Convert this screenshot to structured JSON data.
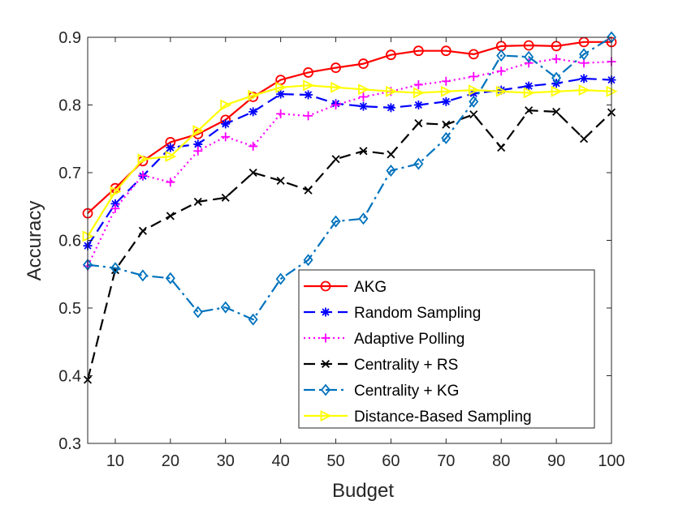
{
  "chart_data": {
    "type": "line",
    "title": "",
    "xlabel": "Budget",
    "ylabel": "Accuracy",
    "xlim": [
      5,
      100
    ],
    "ylim": [
      0.3,
      0.9
    ],
    "xticks": [
      10,
      20,
      30,
      40,
      50,
      60,
      70,
      80,
      90,
      100
    ],
    "yticks": [
      0.3,
      0.4,
      0.5,
      0.6,
      0.7,
      0.8,
      0.9
    ],
    "grid": false,
    "legend_position": "bottom-right",
    "x": [
      5,
      10,
      15,
      20,
      25,
      30,
      35,
      40,
      45,
      50,
      55,
      60,
      65,
      70,
      75,
      80,
      85,
      90,
      95,
      100
    ],
    "series": [
      {
        "name": "AKG",
        "color": "#ff0000",
        "dash": "solid",
        "marker": "circle",
        "values": [
          0.64,
          0.677,
          0.717,
          0.745,
          0.757,
          0.778,
          0.812,
          0.837,
          0.848,
          0.855,
          0.861,
          0.874,
          0.88,
          0.88,
          0.875,
          0.887,
          0.888,
          0.887,
          0.893,
          0.893
        ]
      },
      {
        "name": "Random Sampling",
        "color": "#0000ff",
        "dash": "dashed",
        "marker": "asterisk",
        "values": [
          0.592,
          0.654,
          0.695,
          0.737,
          0.742,
          0.772,
          0.79,
          0.816,
          0.815,
          0.802,
          0.798,
          0.796,
          0.8,
          0.805,
          0.817,
          0.822,
          0.828,
          0.832,
          0.839,
          0.837
        ]
      },
      {
        "name": "Adaptive Polling",
        "color": "#ff00ff",
        "dash": "dotted",
        "marker": "plus",
        "values": [
          0.562,
          0.647,
          0.696,
          0.686,
          0.732,
          0.753,
          0.739,
          0.787,
          0.784,
          0.8,
          0.812,
          0.82,
          0.83,
          0.835,
          0.842,
          0.85,
          0.862,
          0.868,
          0.862,
          0.864
        ]
      },
      {
        "name": "Centrality + RS",
        "color": "#000000",
        "dash": "dashed",
        "marker": "x",
        "values": [
          0.394,
          0.556,
          0.614,
          0.636,
          0.657,
          0.663,
          0.7,
          0.688,
          0.674,
          0.72,
          0.732,
          0.727,
          0.773,
          0.771,
          0.786,
          0.737,
          0.792,
          0.79,
          0.75,
          0.789
        ]
      },
      {
        "name": "Centrality + KG",
        "color": "#0072bd",
        "dash": "dashdot",
        "marker": "diamond",
        "values": [
          0.564,
          0.559,
          0.548,
          0.544,
          0.494,
          0.501,
          0.483,
          0.543,
          0.571,
          0.628,
          0.632,
          0.703,
          0.713,
          0.751,
          0.805,
          0.873,
          0.871,
          0.84,
          0.875,
          0.9
        ]
      },
      {
        "name": "Distance-Based Sampling",
        "color": "#ffff00",
        "dash": "solid",
        "marker": "triangle-right",
        "values": [
          0.606,
          0.672,
          0.72,
          0.724,
          0.762,
          0.8,
          0.814,
          0.826,
          0.829,
          0.826,
          0.823,
          0.82,
          0.818,
          0.82,
          0.822,
          0.82,
          0.818,
          0.82,
          0.822,
          0.82
        ]
      }
    ]
  }
}
